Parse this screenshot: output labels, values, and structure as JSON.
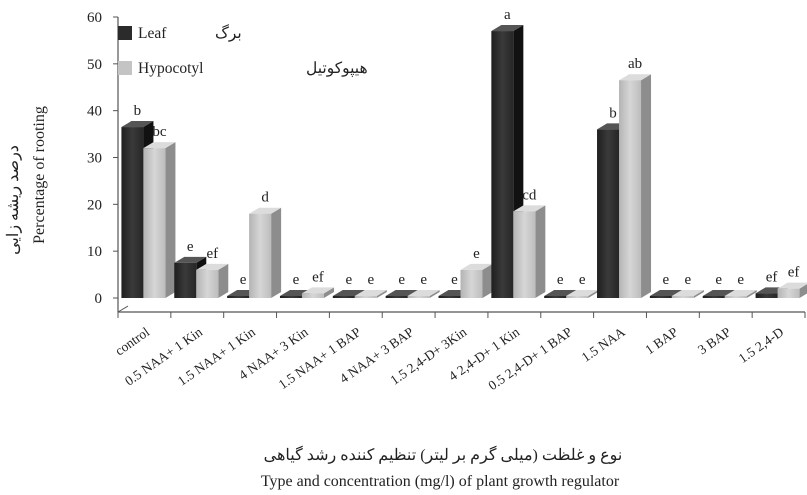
{
  "chart_data": {
    "type": "bar",
    "ylim": [
      0,
      60
    ],
    "yticks": [
      0,
      10,
      20,
      30,
      40,
      50,
      60
    ],
    "xlabel": "Type and concentration (mg/l) of plant growth regulator",
    "xlabel_fa": "نوع و غلظت (میلی گرم بر لیتر) تنظیم کننده رشد گیاهی",
    "ylabel": "Percentage of rooting",
    "ylabel_fa": "درصد ریشه زایی",
    "legend_position": "top-left",
    "categories": [
      "control",
      "0.5 NAA+ 1 Kin",
      "1.5 NAA+ 1 Kin",
      "4 NAA+ 3 Kin",
      "1.5 NAA+ 1 BAP",
      "4 NAA+ 3 BAP",
      "1.5 2,4-D+ 3Kin",
      "4 2,4-D+ 1 Kin",
      "0.5 2,4-D+ 1 BAP",
      "1.5 NAA",
      "1 BAP",
      "3 BAP",
      "1.5 2,4-D"
    ],
    "series": [
      {
        "name": "Leaf",
        "name_fa": "برگ",
        "color": "#2b2b2b",
        "values": [
          36.5,
          7.5,
          0,
          0,
          0,
          0,
          0,
          57,
          0,
          36,
          0,
          0,
          1
        ],
        "labels": [
          "b",
          "e",
          "e",
          "e",
          "e",
          "e",
          "e",
          "a",
          "e",
          "b",
          "e",
          "e",
          "ef"
        ]
      },
      {
        "name": "Hypocotyl",
        "name_fa": "هیپوکوتیل",
        "color": "#c4c4c4",
        "values": [
          32,
          6,
          18,
          1,
          0,
          0,
          6,
          18.5,
          0,
          46.5,
          0,
          0,
          2
        ],
        "labels": [
          "bc",
          "ef",
          "d",
          "ef",
          "e",
          "e",
          "e",
          "cd",
          "e",
          "ab",
          "e",
          "e",
          "ef"
        ]
      }
    ]
  }
}
